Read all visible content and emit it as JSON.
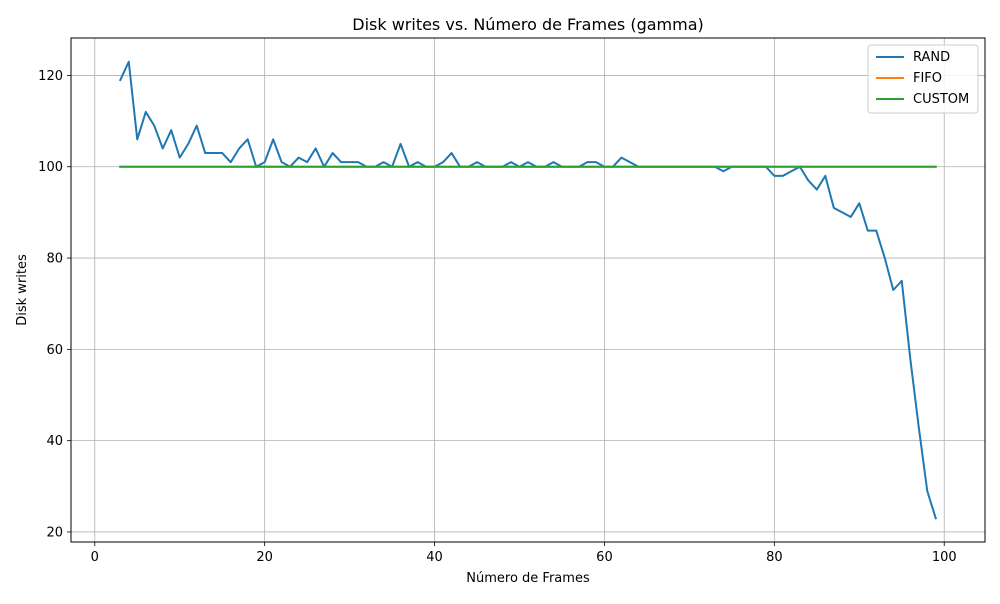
{
  "chart_data": {
    "type": "line",
    "title": "Disk writes vs. Número de Frames (gamma)",
    "xlabel": "Número de Frames",
    "ylabel": "Disk writes",
    "xlim": [
      -2.8,
      104.8
    ],
    "ylim": [
      17.8,
      128.2
    ],
    "xticks": [
      0,
      20,
      40,
      60,
      80,
      100
    ],
    "yticks": [
      20,
      40,
      60,
      80,
      100,
      120
    ],
    "grid": true,
    "legend_position": "top-right",
    "x": [
      3,
      4,
      5,
      6,
      7,
      8,
      9,
      10,
      11,
      12,
      13,
      14,
      15,
      16,
      17,
      18,
      19,
      20,
      21,
      22,
      23,
      24,
      25,
      26,
      27,
      28,
      29,
      30,
      31,
      32,
      33,
      34,
      35,
      36,
      37,
      38,
      39,
      40,
      41,
      42,
      43,
      44,
      45,
      46,
      47,
      48,
      49,
      50,
      51,
      52,
      53,
      54,
      55,
      56,
      57,
      58,
      59,
      60,
      61,
      62,
      63,
      64,
      65,
      66,
      67,
      68,
      69,
      70,
      71,
      72,
      73,
      74,
      75,
      76,
      77,
      78,
      79,
      80,
      81,
      82,
      83,
      84,
      85,
      86,
      87,
      88,
      89,
      90,
      91,
      92,
      93,
      94,
      95,
      96,
      97,
      98,
      99
    ],
    "series": [
      {
        "name": "RAND",
        "color": "#1f77b4",
        "values": [
          119,
          123,
          106,
          112,
          109,
          104,
          108,
          102,
          105,
          109,
          103,
          103,
          103,
          101,
          104,
          106,
          100,
          101,
          106,
          101,
          100,
          102,
          101,
          104,
          100,
          103,
          101,
          101,
          101,
          100,
          100,
          101,
          100,
          105,
          100,
          101,
          100,
          100,
          101,
          103,
          100,
          100,
          101,
          100,
          100,
          100,
          101,
          100,
          101,
          100,
          100,
          101,
          100,
          100,
          100,
          101,
          101,
          100,
          100,
          102,
          101,
          100,
          100,
          100,
          100,
          100,
          100,
          100,
          100,
          100,
          100,
          99,
          100,
          100,
          100,
          100,
          100,
          98,
          98,
          99,
          100,
          97,
          95,
          98,
          91,
          90,
          89,
          92,
          86,
          86,
          80,
          73,
          75,
          58,
          43,
          29,
          23
        ]
      },
      {
        "name": "FIFO",
        "color": "#ff7f0e",
        "values": [
          100,
          100,
          100,
          100,
          100,
          100,
          100,
          100,
          100,
          100,
          100,
          100,
          100,
          100,
          100,
          100,
          100,
          100,
          100,
          100,
          100,
          100,
          100,
          100,
          100,
          100,
          100,
          100,
          100,
          100,
          100,
          100,
          100,
          100,
          100,
          100,
          100,
          100,
          100,
          100,
          100,
          100,
          100,
          100,
          100,
          100,
          100,
          100,
          100,
          100,
          100,
          100,
          100,
          100,
          100,
          100,
          100,
          100,
          100,
          100,
          100,
          100,
          100,
          100,
          100,
          100,
          100,
          100,
          100,
          100,
          100,
          100,
          100,
          100,
          100,
          100,
          100,
          100,
          100,
          100,
          100,
          100,
          100,
          100,
          100,
          100,
          100,
          100,
          100,
          100,
          100,
          100,
          100,
          100,
          100,
          100,
          100
        ]
      },
      {
        "name": "CUSTOM",
        "color": "#2ca02c",
        "values": [
          100,
          100,
          100,
          100,
          100,
          100,
          100,
          100,
          100,
          100,
          100,
          100,
          100,
          100,
          100,
          100,
          100,
          100,
          100,
          100,
          100,
          100,
          100,
          100,
          100,
          100,
          100,
          100,
          100,
          100,
          100,
          100,
          100,
          100,
          100,
          100,
          100,
          100,
          100,
          100,
          100,
          100,
          100,
          100,
          100,
          100,
          100,
          100,
          100,
          100,
          100,
          100,
          100,
          100,
          100,
          100,
          100,
          100,
          100,
          100,
          100,
          100,
          100,
          100,
          100,
          100,
          100,
          100,
          100,
          100,
          100,
          100,
          100,
          100,
          100,
          100,
          100,
          100,
          100,
          100,
          100,
          100,
          100,
          100,
          100,
          100,
          100,
          100,
          100,
          100,
          100,
          100,
          100,
          100,
          100,
          100,
          100
        ]
      }
    ]
  }
}
